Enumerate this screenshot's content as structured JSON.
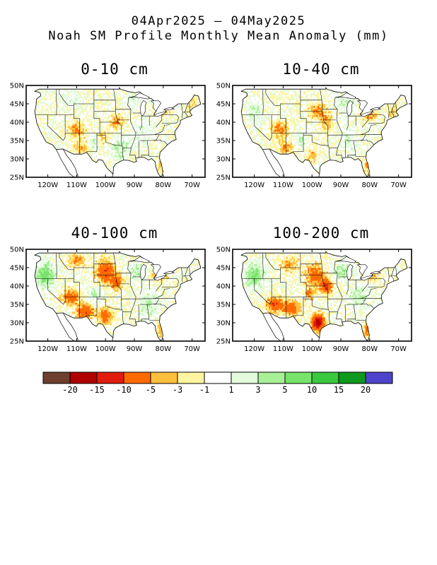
{
  "title": {
    "line1": "04Apr2025 – 04May2025",
    "line2": "Noah SM Profile Monthly Mean Anomaly (mm)"
  },
  "panels": [
    {
      "label": "0-10 cm"
    },
    {
      "label": "10-40 cm"
    },
    {
      "label": "40-100 cm"
    },
    {
      "label": "100-200 cm"
    }
  ],
  "lat_ticks": [
    "50N",
    "45N",
    "40N",
    "35N",
    "30N",
    "25N"
  ],
  "lon_ticks": [
    "120W",
    "110W",
    "100W",
    "90W",
    "80W",
    "70W"
  ],
  "colorbar": {
    "colors": [
      "#6e3f2d",
      "#b00000",
      "#e01c0c",
      "#ff6a00",
      "#ffbe3c",
      "#fff5a0",
      "#ffffff",
      "#e3fbdc",
      "#a8f096",
      "#78e36a",
      "#3ac83e",
      "#0e9a1e",
      "#4d44cc"
    ],
    "labels": [
      "-20",
      "-15",
      "-10",
      "-5",
      "-3",
      "-1",
      "1",
      "3",
      "5",
      "10",
      "15",
      "20"
    ]
  },
  "colors": {
    "dry_strong": "#e01c0c",
    "dry_moderate": "#ff6a00",
    "dry_mild": "#ffbe3c",
    "dry_slight": "#fff5a0",
    "wet_slight": "#e3fbdc",
    "wet_mild": "#a8f096",
    "wet_moderate": "#78e36a",
    "wet_strong": "#3ac83e"
  }
}
